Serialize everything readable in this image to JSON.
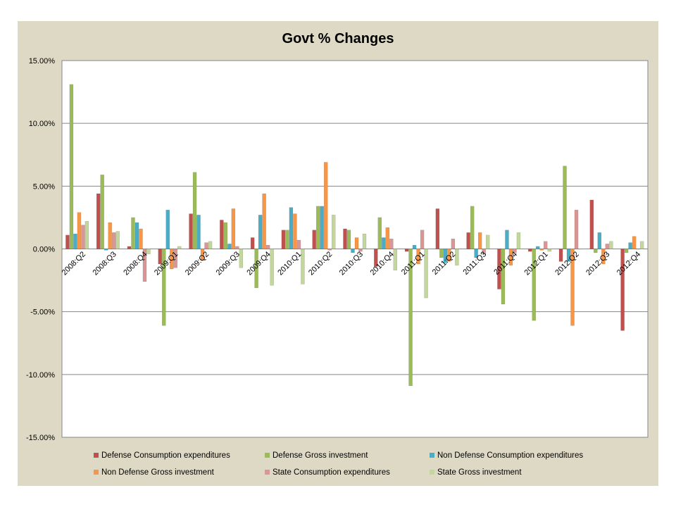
{
  "chart_data": {
    "type": "bar",
    "title": "Govt % Changes",
    "xlabel": "",
    "ylabel": "",
    "ylim": [
      -0.15,
      0.15
    ],
    "yticks": [
      -0.15,
      -0.1,
      -0.05,
      0.0,
      0.05,
      0.1,
      0.15
    ],
    "ytick_labels": [
      "-15.00%",
      "-10.00%",
      "-5.00%",
      "0.00%",
      "5.00%",
      "10.00%",
      "15.00%"
    ],
    "grid": "horizontal",
    "legend_position": "bottom",
    "categories": [
      "2008:Q2",
      "2008:Q3",
      "2008:Q4",
      "2009:Q1",
      "2009:Q2",
      "2009:Q3",
      "2009:Q4",
      "2010:Q1",
      "2010:Q2",
      "2010:Q3",
      "2010:Q4",
      "2011:Q1",
      "2011:Q2",
      "2011:Q3",
      "2011:Q4",
      "2012:Q1",
      "2012:Q2",
      "2012:Q3",
      "2012:Q4"
    ],
    "series": [
      {
        "name": "Defense Consumption expenditures",
        "color": "#c0504d",
        "values": [
          0.011,
          0.044,
          0.002,
          -0.012,
          0.028,
          0.023,
          0.009,
          0.015,
          0.015,
          0.016,
          -0.014,
          -0.002,
          0.032,
          0.013,
          -0.032,
          -0.002,
          -0.01,
          0.039,
          -0.065
        ]
      },
      {
        "name": "Defense Gross investment",
        "color": "#9bbb59",
        "values": [
          0.131,
          0.059,
          0.025,
          -0.061,
          0.061,
          0.021,
          -0.031,
          0.015,
          0.034,
          0.015,
          0.025,
          -0.109,
          -0.007,
          0.034,
          -0.044,
          -0.057,
          0.066,
          -0.003,
          -0.003
        ]
      },
      {
        "name": "Non Defense Consumption expenditures",
        "color": "#4bacc6",
        "values": [
          0.012,
          -0.001,
          0.021,
          0.031,
          0.027,
          0.004,
          0.027,
          0.033,
          0.034,
          -0.003,
          0.009,
          0.003,
          -0.011,
          -0.007,
          0.015,
          0.002,
          -0.01,
          0.013,
          0.005
        ]
      },
      {
        "name": "Non Defense Gross investment",
        "color": "#f79646",
        "values": [
          0.029,
          0.021,
          0.016,
          -0.016,
          -0.009,
          0.032,
          0.044,
          0.028,
          0.069,
          0.009,
          0.017,
          -0.012,
          -0.01,
          0.013,
          -0.013,
          -0.001,
          -0.061,
          -0.012,
          0.01
        ]
      },
      {
        "name": "State Consumption expenditures",
        "color": "#d99694",
        "values": [
          0.019,
          0.013,
          -0.026,
          -0.015,
          0.005,
          0.002,
          0.003,
          0.007,
          -0.001,
          -0.002,
          0.008,
          0.015,
          0.008,
          -0.004,
          -0.003,
          0.006,
          0.031,
          0.004,
          0.0
        ]
      },
      {
        "name": "State Gross investment",
        "color": "#c3d69b",
        "values": [
          0.022,
          0.014,
          -0.004,
          0.002,
          0.006,
          -0.015,
          -0.029,
          -0.028,
          0.027,
          0.012,
          -0.017,
          -0.039,
          -0.013,
          0.011,
          0.013,
          -0.002,
          0.0,
          0.006,
          0.006
        ]
      }
    ]
  }
}
